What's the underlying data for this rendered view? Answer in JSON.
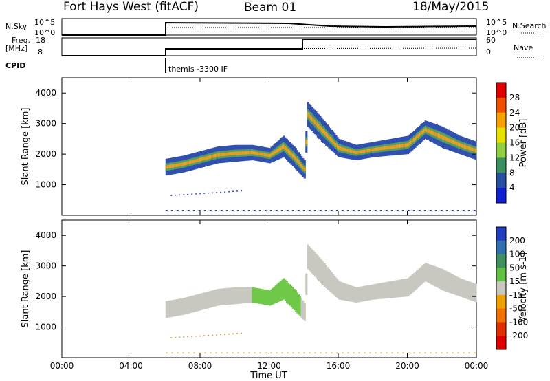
{
  "header": {
    "station": "Fort Hays West (fitACF)",
    "beam": "Beam 01",
    "date": "18/May/2015"
  },
  "strips": {
    "nsky_label": "N.Sky",
    "nsky_ticks": [
      "10^5",
      "10^0"
    ],
    "nsearch_label": "N.Search",
    "nsearch_ticks": [
      "10^5",
      "10^0"
    ],
    "freq_label_1": "Freq.",
    "freq_label_2": "[MHz]",
    "freq_ticks": [
      "18",
      "8"
    ],
    "nave_label": "Nave",
    "nave_ticks": [
      "60",
      "0"
    ],
    "cpid_label": "CPID",
    "cpid_text": "themis -3300 IF"
  },
  "chart_data": [
    {
      "type": "heatmap",
      "panel": "power",
      "ylabel": "Slant Range [km]",
      "xlabel": "Time UT",
      "xlim": [
        "00:00",
        "00:00"
      ],
      "x_ticks": [
        "00:00",
        "04:00",
        "08:00",
        "12:00",
        "16:00",
        "20:00",
        "00:00"
      ],
      "y_ticks": [
        1000,
        2000,
        3000,
        4000
      ],
      "ylim": [
        0,
        4500
      ],
      "colorbar": {
        "label": "Power [dB]",
        "ticks": [
          "28",
          "24",
          "20",
          "16",
          "12",
          "8",
          "4"
        ],
        "colors": [
          "#e00000",
          "#f05000",
          "#f5a000",
          "#e8e000",
          "#90d040",
          "#3a9060",
          "#2850a0",
          "#1020d0"
        ]
      },
      "echo_band": [
        {
          "hour": 6,
          "lo": 1300,
          "hi": 1850
        },
        {
          "hour": 7,
          "lo": 1400,
          "hi": 1950
        },
        {
          "hour": 8,
          "lo": 1550,
          "hi": 2100
        },
        {
          "hour": 9,
          "lo": 1700,
          "hi": 2250
        },
        {
          "hour": 10,
          "lo": 1750,
          "hi": 2300
        },
        {
          "hour": 11,
          "lo": 1800,
          "hi": 2300
        },
        {
          "hour": 12,
          "lo": 1700,
          "hi": 2200
        },
        {
          "hour": 12.8,
          "lo": 1900,
          "hi": 2600
        },
        {
          "hour": 13.5,
          "lo": 1500,
          "hi": 2200
        },
        {
          "hour": 14,
          "lo": 1200,
          "hi": 1800
        },
        {
          "hour": 14.2,
          "lo": 2900,
          "hi": 3700
        },
        {
          "hour": 15,
          "lo": 2400,
          "hi": 3200
        },
        {
          "hour": 16,
          "lo": 1900,
          "hi": 2500
        },
        {
          "hour": 17,
          "lo": 1800,
          "hi": 2300
        },
        {
          "hour": 18,
          "lo": 1900,
          "hi": 2400
        },
        {
          "hour": 19,
          "lo": 1950,
          "hi": 2500
        },
        {
          "hour": 20,
          "lo": 2000,
          "hi": 2600
        },
        {
          "hour": 21,
          "lo": 2500,
          "hi": 3100
        },
        {
          "hour": 22,
          "lo": 2200,
          "hi": 2900
        },
        {
          "hour": 23,
          "lo": 2000,
          "hi": 2600
        },
        {
          "hour": 24,
          "lo": 1800,
          "hi": 2400
        }
      ]
    },
    {
      "type": "heatmap",
      "panel": "velocity",
      "ylabel": "Slant Range [km]",
      "xlabel": "Time UT",
      "xlim": [
        "00:00",
        "00:00"
      ],
      "x_ticks": [
        "00:00",
        "04:00",
        "08:00",
        "12:00",
        "16:00",
        "20:00",
        "00:00"
      ],
      "y_ticks": [
        1000,
        2000,
        3000,
        4000
      ],
      "ylim": [
        0,
        4500
      ],
      "colorbar": {
        "label": "Velocity [m s-1]",
        "ticks": [
          "200",
          "100",
          "50",
          "15",
          "-15",
          "-50",
          "-100",
          "-200"
        ],
        "colors": [
          "#2040c0",
          "#3070b0",
          "#409060",
          "#60c040",
          "#c8c8c0",
          "#f0a000",
          "#f07000",
          "#e03000",
          "#e00000"
        ]
      },
      "echo_band_same_as_power": true
    }
  ]
}
